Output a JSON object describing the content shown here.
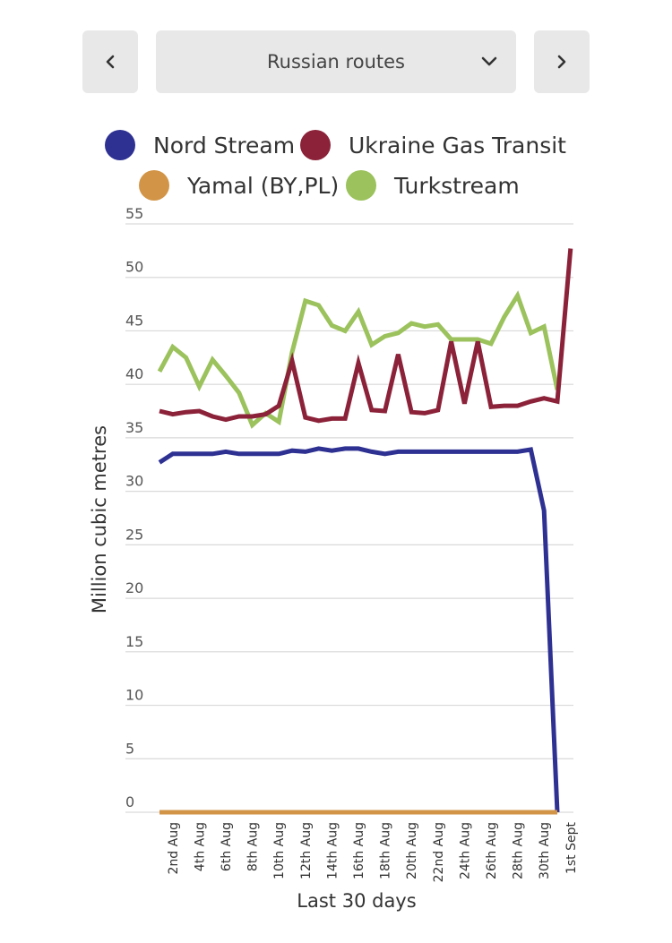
{
  "controls": {
    "dropdown_value": "Russian routes",
    "prev_icon": "chevron-left-icon",
    "next_icon": "chevron-right-icon",
    "dropdown_icon": "chevron-down-icon"
  },
  "chart_data": {
    "type": "line",
    "xlabel": "Last 30 days",
    "ylabel": "Million cubic metres",
    "ylim": [
      0,
      55
    ],
    "yticks": [
      0,
      5,
      10,
      15,
      20,
      25,
      30,
      35,
      40,
      45,
      50,
      55
    ],
    "grid": true,
    "legend_position": "top",
    "categories": [
      "1st Aug",
      "2nd Aug",
      "3rd Aug",
      "4th Aug",
      "5th Aug",
      "6th Aug",
      "7th Aug",
      "8th Aug",
      "9th Aug",
      "10th Aug",
      "11th Aug",
      "12th Aug",
      "13th Aug",
      "14th Aug",
      "15th Aug",
      "16th Aug",
      "17th Aug",
      "18th Aug",
      "19th Aug",
      "20th Aug",
      "21st Aug",
      "22nd Aug",
      "23rd Aug",
      "24th Aug",
      "25th Aug",
      "26th Aug",
      "27th Aug",
      "28th Aug",
      "29th Aug",
      "30th Aug",
      "31st Aug",
      "1st Sept"
    ],
    "x_tick_labels": [
      "2nd Aug",
      "4th Aug",
      "6th Aug",
      "8th Aug",
      "10th Aug",
      "12th Aug",
      "14th Aug",
      "16th Aug",
      "18th Aug",
      "20th Aug",
      "22nd Aug",
      "24th Aug",
      "26th Aug",
      "28th Aug",
      "30th Aug",
      "1st Sept"
    ],
    "series": [
      {
        "name": "Nord Stream",
        "color": "#2e3192",
        "values": [
          32.7,
          33.5,
          33.5,
          33.5,
          33.5,
          33.7,
          33.5,
          33.5,
          33.5,
          33.5,
          33.8,
          33.7,
          34.0,
          33.8,
          34.0,
          34.0,
          33.7,
          33.5,
          33.7,
          33.7,
          33.7,
          33.7,
          33.7,
          33.7,
          33.7,
          33.7,
          33.7,
          33.7,
          33.9,
          28.2,
          0,
          null
        ]
      },
      {
        "name": "Ukraine Gas Transit",
        "color": "#8b2239",
        "values": [
          37.5,
          37.2,
          37.4,
          37.5,
          37.0,
          36.7,
          37.0,
          37.0,
          37.2,
          38.0,
          42.2,
          36.9,
          36.6,
          36.8,
          36.8,
          42.0,
          37.6,
          37.5,
          42.8,
          37.4,
          37.3,
          37.6,
          44.0,
          38.2,
          44.0,
          37.9,
          38.0,
          38.0,
          38.4,
          38.7,
          38.4,
          52.7
        ]
      },
      {
        "name": "Yamal (BY,PL)",
        "color": "#d29547",
        "values": [
          0,
          0,
          0,
          0,
          0,
          0,
          0,
          0,
          0,
          0,
          0,
          0,
          0,
          0,
          0,
          0,
          0,
          0,
          0,
          0,
          0,
          0,
          0,
          0,
          0,
          0,
          0,
          0,
          0,
          0,
          0,
          null
        ]
      },
      {
        "name": "Turkstream",
        "color": "#9bc25c",
        "values": [
          41.2,
          43.5,
          42.5,
          39.8,
          42.3,
          40.8,
          39.2,
          36.2,
          37.3,
          36.5,
          43.0,
          47.8,
          47.4,
          45.5,
          45.0,
          46.8,
          43.7,
          44.5,
          44.8,
          45.7,
          45.4,
          45.6,
          44.2,
          44.2,
          44.2,
          43.8,
          46.3,
          48.3,
          44.8,
          45.4,
          39.5,
          null
        ]
      }
    ]
  }
}
